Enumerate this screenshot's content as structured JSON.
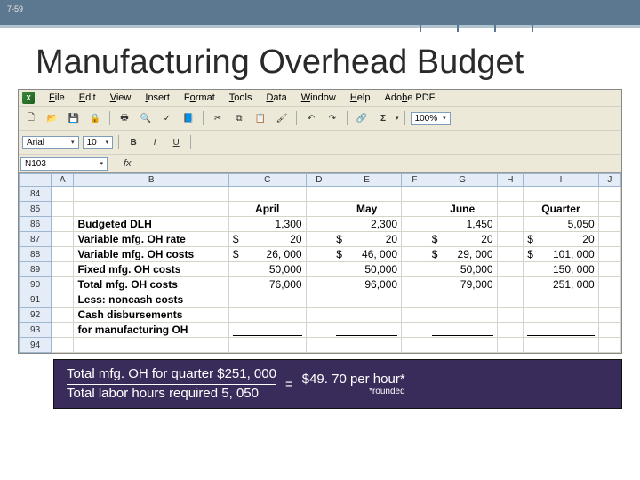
{
  "slide": {
    "number": "7-59",
    "title": "Manufacturing Overhead Budget"
  },
  "menu": {
    "items": [
      "File",
      "Edit",
      "View",
      "Insert",
      "Format",
      "Tools",
      "Data",
      "Window",
      "Help",
      "Adobe PDF"
    ],
    "underlines": [
      "F",
      "E",
      "V",
      "I",
      "o",
      "T",
      "D",
      "W",
      "H",
      "b"
    ]
  },
  "toolbar": {
    "zoom": "100%",
    "font_name": "Arial",
    "font_size": "10"
  },
  "formula": {
    "namebox": "N103",
    "fx": ""
  },
  "columns": [
    "",
    "A",
    "B",
    "C",
    "D",
    "E",
    "F",
    "G",
    "H",
    "I",
    "J"
  ],
  "col_widths": {
    "A": 14,
    "B": 150,
    "C": 70,
    "D": 18,
    "E": 62,
    "F": 18,
    "G": 62,
    "H": 18,
    "I": 68,
    "J": 14
  },
  "rows": [
    {
      "n": "84"
    },
    {
      "n": "85",
      "B": "",
      "C": {
        "t": "April",
        "h": true
      },
      "E": {
        "t": "May",
        "h": true
      },
      "G": {
        "t": "June",
        "h": true
      },
      "I": {
        "t": "Quarter",
        "h": true
      }
    },
    {
      "n": "86",
      "B": "Budgeted DLH",
      "C": "1,300",
      "E": "2,300",
      "G": "1,450",
      "I": "5,050",
      "bold": true
    },
    {
      "n": "87",
      "B": "Variable mfg. OH rate",
      "C": "20",
      "E": "20",
      "G": "20",
      "I": "20",
      "Dc": "$",
      "Fc": "$",
      "Hc": "$",
      "Ic": "$",
      "bold": true,
      "money": true
    },
    {
      "n": "88",
      "B": "Variable mfg. OH costs",
      "C": "26, 000",
      "E": "46, 000",
      "G": "29, 000",
      "I": "101, 000",
      "Dc": "$",
      "Fc": "$",
      "Hc": "$",
      "Ic": "$",
      "bold": true,
      "money": true
    },
    {
      "n": "89",
      "B": "Fixed mfg. OH costs",
      "C": "50,000",
      "E": "50,000",
      "G": "50,000",
      "I": "150, 000",
      "bold": true
    },
    {
      "n": "90",
      "B": "Total mfg. OH costs",
      "C": "76,000",
      "E": "96,000",
      "G": "79,000",
      "I": "251, 000",
      "bold": true
    },
    {
      "n": "91",
      "B": "Less: noncash costs",
      "bold": true
    },
    {
      "n": "92",
      "B": "Cash disbursements",
      "bold": true
    },
    {
      "n": "93",
      "B": "  for manufacturing OH",
      "bold": true,
      "blank": true
    },
    {
      "n": "94"
    }
  ],
  "footer": {
    "top": "Total mfg. OH for quarter  $251, 000",
    "bot": "Total labor hours required     5, 050",
    "eq": "=",
    "result": "$49. 70 per hour*",
    "note": "*rounded"
  },
  "colors": {
    "header_bg": "#5c7890",
    "excel_bg": "#ece9d8",
    "sheet_hdr_bg": "#e4ecf7",
    "footer_bg": "#3a2c5a"
  }
}
